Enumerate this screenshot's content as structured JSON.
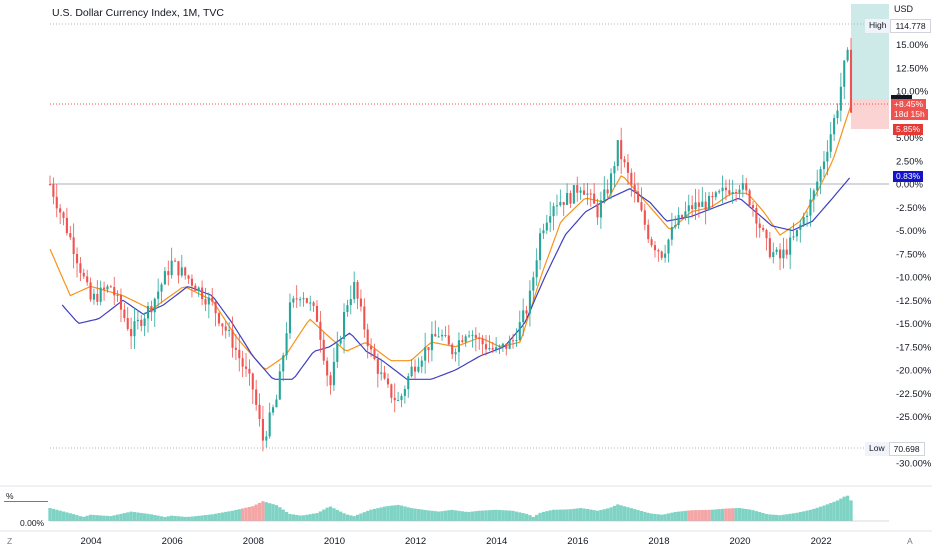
{
  "title": "U.S. Dollar Currency Index, 1M, TVC",
  "currency": "USD",
  "price_axis_labels": [
    "15.00%",
    "12.50%",
    "10.00%",
    "5.00%",
    "2.50%",
    "0.00%",
    "-2.50%",
    "-5.00%",
    "-7.50%",
    "-10.00%",
    "-12.50%",
    "-15.00%",
    "-17.50%",
    "-20.00%",
    "-22.50%",
    "-25.00%",
    "-30.00%"
  ],
  "time_axis_labels": [
    "2004",
    "2006",
    "2008",
    "2010",
    "2012",
    "2014",
    "2016",
    "2018",
    "2020",
    "2022"
  ],
  "high": {
    "label": "High",
    "value": "114.778"
  },
  "low": {
    "label": "Low",
    "value": "70.698"
  },
  "current": {
    "change": "+8.45%",
    "countdown": "18d 15h"
  },
  "marker_red": "5.85%",
  "marker_blue": "0.83%",
  "indicator": {
    "label": "%",
    "axis_label": "0.00%"
  },
  "corner_left": "Z",
  "corner_right": "A",
  "colors": {
    "up": "#26a69a",
    "down": "#ef5350",
    "ma_fast": "#f7931a",
    "ma_slow": "#3f3fbf",
    "zero_marker": "#1313c9",
    "hist_up": "#7fd3c4",
    "hist_down": "#f4a6a6"
  },
  "chart_data": {
    "type": "candlestick",
    "symbol": "U.S. Dollar Currency Index",
    "interval": "1M",
    "scale": "percent",
    "x_range": [
      "2003-01",
      "2022-09"
    ],
    "y_range_percent": [
      -30,
      15
    ],
    "annotations": [
      "High 114.778",
      "Low 70.698",
      "+8.45%",
      "18d 15h",
      "5.85%",
      "0.83%"
    ],
    "series": [
      {
        "name": "price",
        "anchors": [
          [
            2003.0,
            0.0
          ],
          [
            2003.6,
            -7.0
          ],
          [
            2004.0,
            -12.5
          ],
          [
            2004.5,
            -11.0
          ],
          [
            2005.0,
            -16.0
          ],
          [
            2005.5,
            -13.0
          ],
          [
            2006.0,
            -8.5
          ],
          [
            2006.5,
            -10.5
          ],
          [
            2007.0,
            -13.0
          ],
          [
            2007.5,
            -17.0
          ],
          [
            2008.0,
            -22.0
          ],
          [
            2008.25,
            -27.5
          ],
          [
            2008.6,
            -23.0
          ],
          [
            2008.9,
            -13.5
          ],
          [
            2009.2,
            -11.5
          ],
          [
            2009.6,
            -14.5
          ],
          [
            2009.9,
            -22.0
          ],
          [
            2010.3,
            -13.0
          ],
          [
            2010.5,
            -11.0
          ],
          [
            2010.9,
            -18.0
          ],
          [
            2011.3,
            -22.0
          ],
          [
            2011.6,
            -23.5
          ],
          [
            2011.9,
            -20.0
          ],
          [
            2012.3,
            -17.5
          ],
          [
            2012.6,
            -16.0
          ],
          [
            2012.9,
            -18.0
          ],
          [
            2013.3,
            -15.5
          ],
          [
            2013.6,
            -17.0
          ],
          [
            2014.0,
            -18.0
          ],
          [
            2014.4,
            -17.0
          ],
          [
            2014.8,
            -13.0
          ],
          [
            2015.1,
            -5.0
          ],
          [
            2015.4,
            -2.0
          ],
          [
            2015.8,
            -1.5
          ],
          [
            2016.1,
            0.0
          ],
          [
            2016.5,
            -3.0
          ],
          [
            2016.8,
            0.0
          ],
          [
            2017.0,
            4.0
          ],
          [
            2017.4,
            -1.0
          ],
          [
            2017.8,
            -6.0
          ],
          [
            2018.1,
            -7.5
          ],
          [
            2018.4,
            -4.5
          ],
          [
            2018.8,
            -2.5
          ],
          [
            2019.3,
            -2.0
          ],
          [
            2019.7,
            -0.5
          ],
          [
            2020.0,
            0.0
          ],
          [
            2020.3,
            -2.0
          ],
          [
            2020.7,
            -7.0
          ],
          [
            2021.0,
            -8.0
          ],
          [
            2021.4,
            -5.5
          ],
          [
            2021.8,
            -1.5
          ],
          [
            2022.1,
            3.0
          ],
          [
            2022.4,
            8.0
          ],
          [
            2022.6,
            13.0
          ],
          [
            2022.7,
            14.0
          ],
          [
            2022.75,
            8.45
          ]
        ]
      },
      {
        "name": "ma_fast",
        "anchors": [
          [
            2003.0,
            -7.0
          ],
          [
            2003.5,
            -12.0
          ],
          [
            2004.0,
            -11.0
          ],
          [
            2004.8,
            -12.0
          ],
          [
            2005.5,
            -13.5
          ],
          [
            2006.3,
            -11.0
          ],
          [
            2007.0,
            -12.5
          ],
          [
            2007.6,
            -16.5
          ],
          [
            2008.3,
            -20.0
          ],
          [
            2008.8,
            -18.5
          ],
          [
            2009.4,
            -14.5
          ],
          [
            2009.9,
            -16.5
          ],
          [
            2010.3,
            -18.0
          ],
          [
            2010.8,
            -17.0
          ],
          [
            2011.4,
            -19.0
          ],
          [
            2011.9,
            -19.0
          ],
          [
            2012.4,
            -17.0
          ],
          [
            2013.0,
            -17.5
          ],
          [
            2013.6,
            -16.5
          ],
          [
            2014.1,
            -17.5
          ],
          [
            2014.6,
            -17.0
          ],
          [
            2015.1,
            -10.0
          ],
          [
            2015.6,
            -4.0
          ],
          [
            2016.2,
            -1.5
          ],
          [
            2016.7,
            -2.0
          ],
          [
            2017.1,
            1.0
          ],
          [
            2017.5,
            -1.0
          ],
          [
            2017.9,
            -3.0
          ],
          [
            2018.3,
            -5.0
          ],
          [
            2018.8,
            -3.0
          ],
          [
            2019.3,
            -2.5
          ],
          [
            2019.8,
            -1.0
          ],
          [
            2020.2,
            -1.0
          ],
          [
            2020.6,
            -3.0
          ],
          [
            2021.0,
            -5.5
          ],
          [
            2021.5,
            -4.0
          ],
          [
            2021.9,
            -1.0
          ],
          [
            2022.3,
            2.5
          ],
          [
            2022.75,
            8.5
          ]
        ]
      },
      {
        "name": "ma_slow",
        "anchors": [
          [
            2003.3,
            -13.0
          ],
          [
            2003.7,
            -15.0
          ],
          [
            2004.2,
            -14.5
          ],
          [
            2004.8,
            -12.5
          ],
          [
            2005.3,
            -14.0
          ],
          [
            2005.8,
            -13.0
          ],
          [
            2006.4,
            -11.0
          ],
          [
            2007.0,
            -12.0
          ],
          [
            2007.5,
            -15.0
          ],
          [
            2008.0,
            -18.5
          ],
          [
            2008.5,
            -21.0
          ],
          [
            2009.0,
            -21.0
          ],
          [
            2009.5,
            -18.0
          ],
          [
            2009.9,
            -17.5
          ],
          [
            2010.4,
            -16.0
          ],
          [
            2010.8,
            -18.0
          ],
          [
            2011.2,
            -19.0
          ],
          [
            2011.8,
            -21.0
          ],
          [
            2012.4,
            -21.0
          ],
          [
            2013.0,
            -20.0
          ],
          [
            2013.6,
            -18.5
          ],
          [
            2014.2,
            -17.5
          ],
          [
            2014.7,
            -15.0
          ],
          [
            2015.2,
            -10.0
          ],
          [
            2015.7,
            -5.5
          ],
          [
            2016.2,
            -3.0
          ],
          [
            2016.8,
            -1.5
          ],
          [
            2017.3,
            -0.5
          ],
          [
            2017.8,
            -2.0
          ],
          [
            2018.2,
            -4.0
          ],
          [
            2018.8,
            -3.5
          ],
          [
            2019.4,
            -2.5
          ],
          [
            2020.0,
            -1.5
          ],
          [
            2020.4,
            -3.0
          ],
          [
            2020.8,
            -4.5
          ],
          [
            2021.3,
            -5.0
          ],
          [
            2021.8,
            -4.0
          ],
          [
            2022.3,
            -1.5
          ],
          [
            2022.75,
            0.83
          ]
        ]
      }
    ],
    "indicator_histogram": {
      "name": "%",
      "unit": "percent",
      "zero_label": "0.00%"
    }
  }
}
